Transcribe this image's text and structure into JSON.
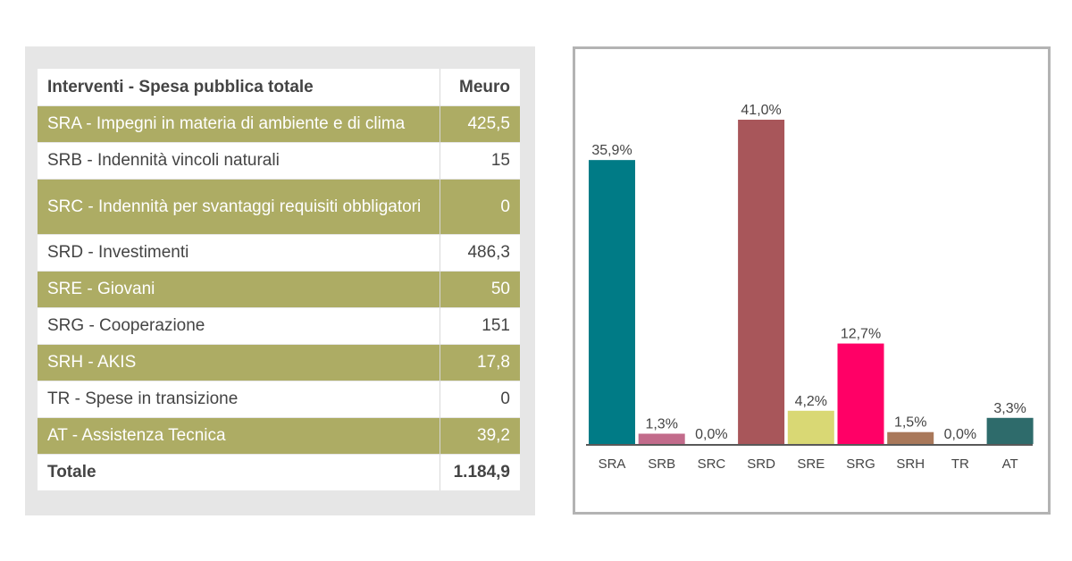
{
  "table": {
    "header": {
      "label": "Interventi - Spesa pubblica totale",
      "value": "Meuro"
    },
    "rows": [
      {
        "label": "SRA - Impegni in materia di ambiente e di clima",
        "value": "425,5",
        "style": "olive"
      },
      {
        "label": "SRB - Indennità vincoli naturali",
        "value": "15",
        "style": "white"
      },
      {
        "label": "SRC - Indennità per svantaggi requisiti obbligatori",
        "value": "0",
        "style": "olive"
      },
      {
        "label": "SRD - Investimenti",
        "value": "486,3",
        "style": "white"
      },
      {
        "label": "SRE - Giovani",
        "value": "50",
        "style": "olive"
      },
      {
        "label": "SRG - Cooperazione",
        "value": "151",
        "style": "white"
      },
      {
        "label": "SRH - AKIS",
        "value": "17,8",
        "style": "olive"
      },
      {
        "label": "TR - Spese in transizione",
        "value": "0",
        "style": "white"
      },
      {
        "label": "AT - Assistenza Tecnica",
        "value": "39,2",
        "style": "olive"
      }
    ],
    "total": {
      "label": "Totale",
      "value": "1.184,9"
    },
    "colors": {
      "olive": "#adac64",
      "panel": "#e6e6e6"
    }
  },
  "chart_data": {
    "type": "bar",
    "categories": [
      "SRA",
      "SRB",
      "SRC",
      "SRD",
      "SRE",
      "SRG",
      "SRH",
      "TR",
      "AT"
    ],
    "values": [
      35.9,
      1.3,
      0.0,
      41.0,
      4.2,
      12.7,
      1.5,
      0.0,
      3.3
    ],
    "value_labels": [
      "35,9%",
      "1,3%",
      "0,0%",
      "41,0%",
      "4,2%",
      "12,7%",
      "1,5%",
      "0,0%",
      "3,3%"
    ],
    "colors": [
      "#007b86",
      "#c26b8b",
      "#5a8a8a",
      "#a8565a",
      "#d9d874",
      "#ff0066",
      "#a9785a",
      "#5a8a8a",
      "#2e6b6b"
    ],
    "ylim": [
      0,
      41
    ],
    "grid": false,
    "legend": "none"
  }
}
